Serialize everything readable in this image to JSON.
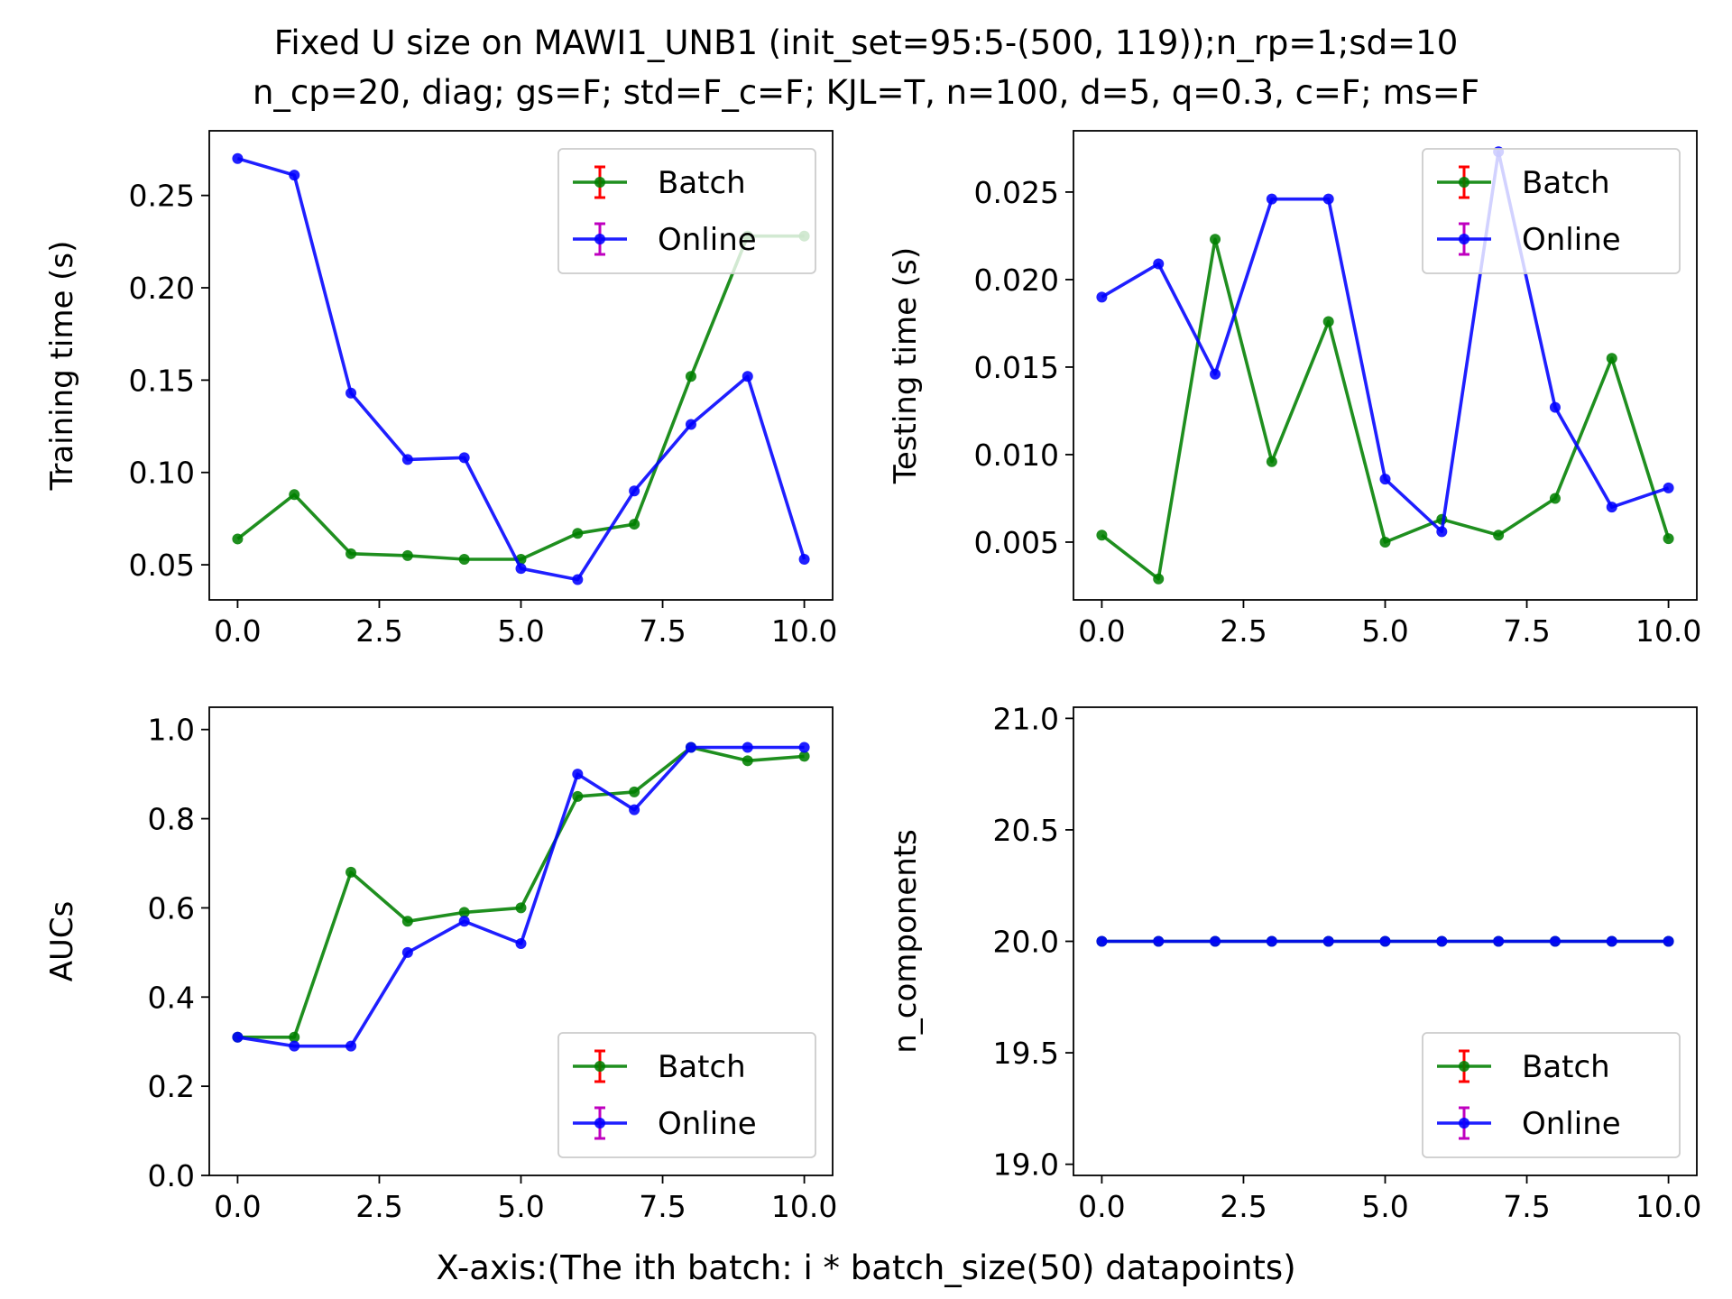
{
  "figure": {
    "title_line1": "Fixed U size on MAWI1_UNB1 (init_set=95:5-(500, 119));n_rp=1;sd=10",
    "title_line2": "n_cp=20, diag; gs=F; std=F_c=F; KJL=T, n=100, d=5, q=0.3, c=F; ms=F",
    "xlabel": "X-axis:(The ith batch: i * batch_size(50) datapoints)"
  },
  "colors": {
    "batch_line": "#008000",
    "online_line": "#0000ff",
    "batch_errorbar": "#ff0000",
    "online_errorbar": "#bf00bf"
  },
  "chart_data": [
    {
      "type": "line",
      "ylabel": "Training time (s)",
      "x": [
        0,
        1,
        2,
        3,
        4,
        5,
        6,
        7,
        8,
        9,
        10
      ],
      "xlim": [
        -0.5,
        10.5
      ],
      "ylim": [
        0.031,
        0.285
      ],
      "xticks": [
        0,
        2.5,
        5,
        7.5,
        10
      ],
      "xtick_labels": [
        "0.0",
        "2.5",
        "5.0",
        "7.5",
        "10.0"
      ],
      "yticks": [
        0.05,
        0.1,
        0.15,
        0.2,
        0.25
      ],
      "ytick_labels": [
        "0.05",
        "0.10",
        "0.15",
        "0.20",
        "0.25"
      ],
      "legend_loc": "upper right",
      "series": [
        {
          "name": "Batch",
          "values": [
            0.064,
            0.088,
            0.056,
            0.055,
            0.053,
            0.053,
            0.067,
            0.072,
            0.152,
            0.228,
            0.228
          ]
        },
        {
          "name": "Online",
          "values": [
            0.27,
            0.261,
            0.143,
            0.107,
            0.108,
            0.048,
            0.042,
            0.09,
            0.126,
            0.152,
            0.053
          ]
        }
      ]
    },
    {
      "type": "line",
      "ylabel": "Testing time (s)",
      "x": [
        0,
        1,
        2,
        3,
        4,
        5,
        6,
        7,
        8,
        9,
        10
      ],
      "xlim": [
        -0.5,
        10.5
      ],
      "ylim": [
        0.0017,
        0.0285
      ],
      "xticks": [
        0,
        2.5,
        5,
        7.5,
        10
      ],
      "xtick_labels": [
        "0.0",
        "2.5",
        "5.0",
        "7.5",
        "10.0"
      ],
      "yticks": [
        0.005,
        0.01,
        0.015,
        0.02,
        0.025
      ],
      "ytick_labels": [
        "0.005",
        "0.010",
        "0.015",
        "0.020",
        "0.025"
      ],
      "legend_loc": "upper right",
      "series": [
        {
          "name": "Batch",
          "values": [
            0.0054,
            0.0029,
            0.0223,
            0.0096,
            0.0176,
            0.005,
            0.0063,
            0.0054,
            0.0075,
            0.0155,
            0.0052
          ]
        },
        {
          "name": "Online",
          "values": [
            0.019,
            0.0209,
            0.0146,
            0.0246,
            0.0246,
            0.0086,
            0.0056,
            0.0273,
            0.0127,
            0.007,
            0.0081
          ]
        }
      ]
    },
    {
      "type": "line",
      "ylabel": "AUCs",
      "x": [
        0,
        1,
        2,
        3,
        4,
        5,
        6,
        7,
        8,
        9,
        10
      ],
      "xlim": [
        -0.5,
        10.5
      ],
      "ylim": [
        0.0,
        1.05
      ],
      "xticks": [
        0,
        2.5,
        5,
        7.5,
        10
      ],
      "xtick_labels": [
        "0.0",
        "2.5",
        "5.0",
        "7.5",
        "10.0"
      ],
      "yticks": [
        0.0,
        0.2,
        0.4,
        0.6,
        0.8,
        1.0
      ],
      "ytick_labels": [
        "0.0",
        "0.2",
        "0.4",
        "0.6",
        "0.8",
        "1.0"
      ],
      "legend_loc": "lower right",
      "series": [
        {
          "name": "Batch",
          "values": [
            0.31,
            0.31,
            0.68,
            0.57,
            0.59,
            0.6,
            0.85,
            0.86,
            0.96,
            0.93,
            0.94
          ]
        },
        {
          "name": "Online",
          "values": [
            0.31,
            0.29,
            0.29,
            0.5,
            0.57,
            0.52,
            0.9,
            0.82,
            0.96,
            0.96,
            0.96
          ]
        }
      ]
    },
    {
      "type": "line",
      "ylabel": "n_components",
      "x": [
        0,
        1,
        2,
        3,
        4,
        5,
        6,
        7,
        8,
        9,
        10
      ],
      "xlim": [
        -0.5,
        10.5
      ],
      "ylim": [
        18.95,
        21.05
      ],
      "xticks": [
        0,
        2.5,
        5,
        7.5,
        10
      ],
      "xtick_labels": [
        "0.0",
        "2.5",
        "5.0",
        "7.5",
        "10.0"
      ],
      "yticks": [
        19.0,
        19.5,
        20.0,
        20.5,
        21.0
      ],
      "ytick_labels": [
        "19.0",
        "19.5",
        "20.0",
        "20.5",
        "21.0"
      ],
      "legend_loc": "lower right",
      "series": [
        {
          "name": "Batch",
          "values": [
            20,
            20,
            20,
            20,
            20,
            20,
            20,
            20,
            20,
            20,
            20
          ]
        },
        {
          "name": "Online",
          "values": [
            20,
            20,
            20,
            20,
            20,
            20,
            20,
            20,
            20,
            20,
            20
          ]
        }
      ]
    }
  ]
}
